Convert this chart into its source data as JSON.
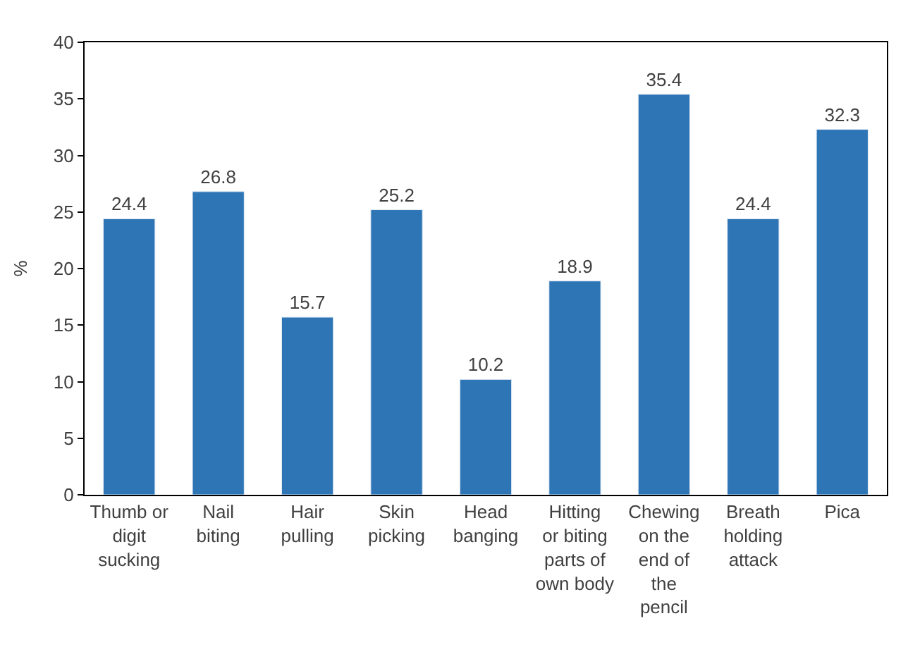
{
  "chart_data": {
    "type": "bar",
    "ylabel": "%",
    "categories": [
      "Thumb or digit sucking",
      "Nail biting",
      "Hair pulling",
      "Skin picking",
      "Head banging",
      "Hitting or biting parts of own body",
      "Chewing on the end of the pencil",
      "Breath holding attack",
      "Pica"
    ],
    "values": [
      24.4,
      26.8,
      15.7,
      25.2,
      10.2,
      18.9,
      35.4,
      24.4,
      32.3
    ],
    "color": "#2e75b6",
    "ylim": [
      0,
      40
    ],
    "yticks": [
      0,
      5,
      10,
      15,
      20,
      25,
      30,
      35,
      40
    ],
    "legend": false,
    "data_labels": true
  }
}
